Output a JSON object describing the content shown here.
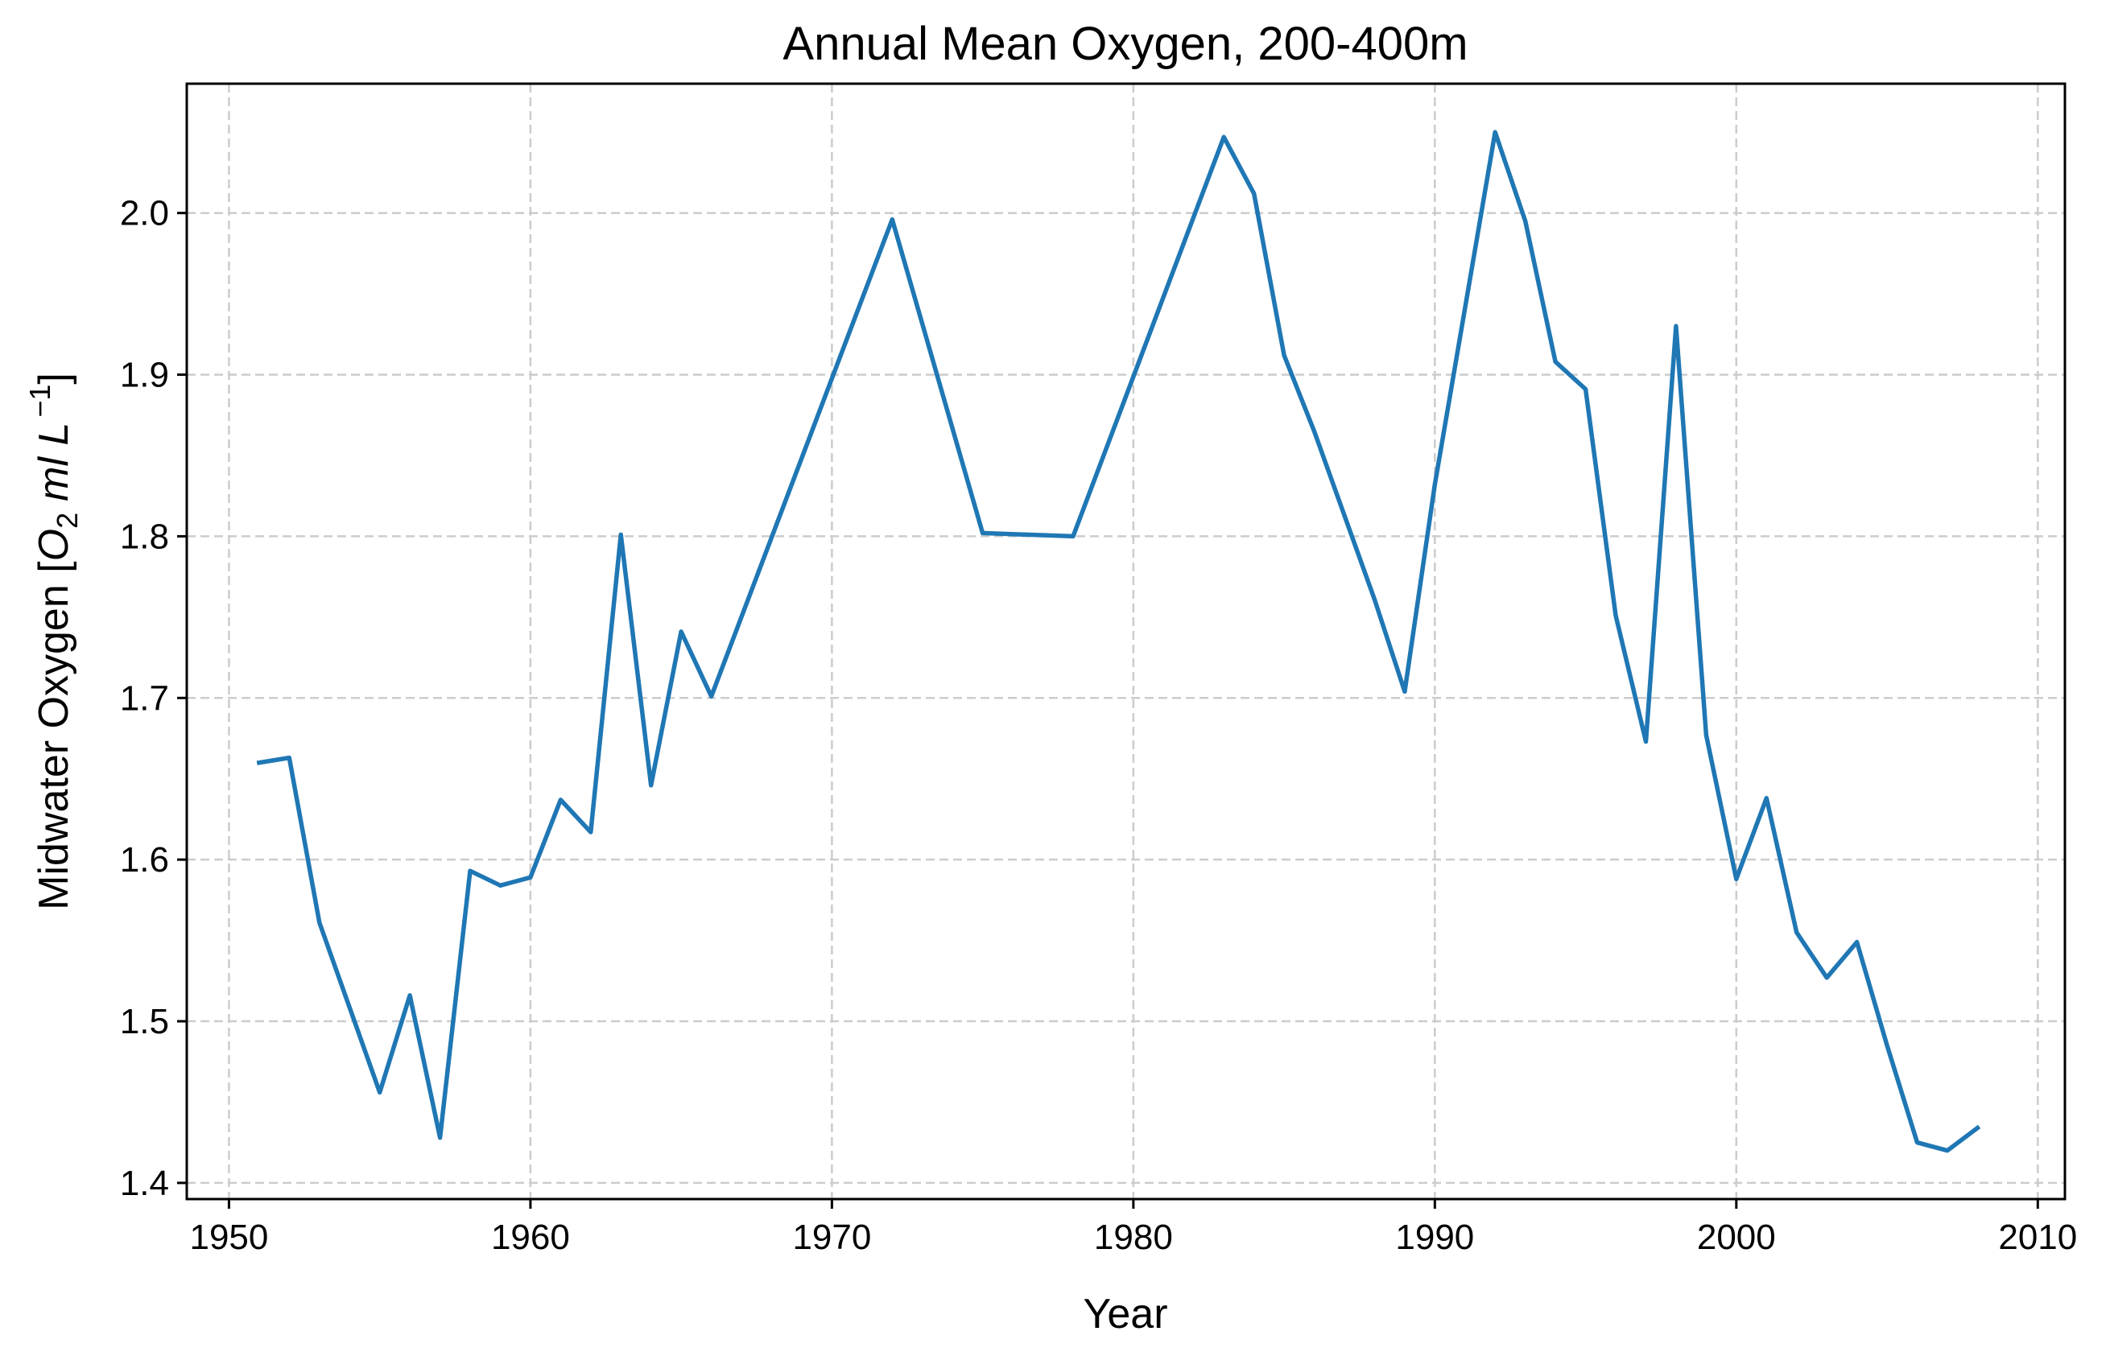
{
  "chart_data": {
    "type": "line",
    "title": "Annual Mean Oxygen, 200-400m",
    "xlabel": "Year",
    "ylabel": "Midwater Oxygen [O₂ ml L⁻¹]",
    "ylabel_parts": {
      "prefix": "Midwater Oxygen [",
      "o": "O",
      "o_sub": "2",
      "units": "ml L",
      "exp": "−1",
      "suffix": "]"
    },
    "xlim": [
      1948.6,
      2010.9
    ],
    "ylim": [
      1.39,
      2.08
    ],
    "xticks": [
      1950,
      1960,
      1970,
      1980,
      1990,
      2000,
      2010
    ],
    "yticks": [
      1.4,
      1.5,
      1.6,
      1.7,
      1.8,
      1.9,
      2.0
    ],
    "ytick_labels": [
      "1.4",
      "1.5",
      "1.6",
      "1.7",
      "1.8",
      "1.9",
      "2.0"
    ],
    "grid": true,
    "legend": "none",
    "series": [
      {
        "color": "#1f77b4",
        "x": [
          1951,
          1952,
          1953,
          1955,
          1956,
          1957,
          1958,
          1959,
          1960,
          1961,
          1962,
          1963,
          1964,
          1965,
          1966,
          1972,
          1975,
          1978,
          1983,
          1984,
          1985,
          1986,
          1988,
          1989,
          1990,
          1992,
          1993,
          1994,
          1995,
          1996,
          1997,
          1998,
          1999,
          2000,
          2001,
          2002,
          2003,
          2004,
          2005,
          2006,
          2007,
          2008
        ],
        "y": [
          1.66,
          1.663,
          1.561,
          1.456,
          1.516,
          1.428,
          1.593,
          1.584,
          1.589,
          1.637,
          1.617,
          1.801,
          1.646,
          1.741,
          1.701,
          1.996,
          1.802,
          1.8,
          2.047,
          2.012,
          1.912,
          1.865,
          1.761,
          1.704,
          1.832,
          2.05,
          1.995,
          1.908,
          1.891,
          1.751,
          1.673,
          1.93,
          1.677,
          1.588,
          1.638,
          1.555,
          1.527,
          1.549,
          1.485,
          1.425,
          1.42,
          1.434
        ]
      }
    ]
  }
}
